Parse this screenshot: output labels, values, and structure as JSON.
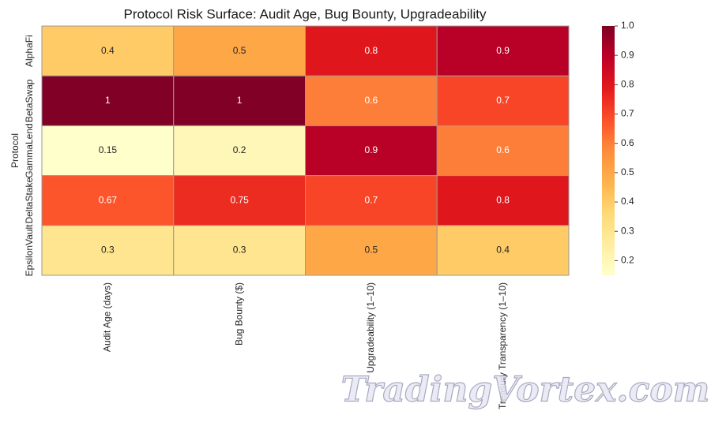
{
  "chart_data": {
    "type": "heatmap",
    "title": "Protocol Risk Surface: Audit Age, Bug Bounty, Upgradeability",
    "ylabel": "Protocol",
    "x_categories": [
      "Audit Age (days)",
      "Bug Bounty ($)",
      "Upgradeability (1–10)",
      "Treasury Transparency (1–10)"
    ],
    "y_categories": [
      "AlphaFi",
      "BetaSwap",
      "GammaLend",
      "DeltaStake",
      "EpsilonVault"
    ],
    "values": [
      [
        0.4,
        0.5,
        0.8,
        0.9
      ],
      [
        1,
        1,
        0.6,
        0.7
      ],
      [
        0.15,
        0.2,
        0.9,
        0.6
      ],
      [
        0.67,
        0.75,
        0.7,
        0.8
      ],
      [
        0.3,
        0.3,
        0.5,
        0.4
      ]
    ],
    "colormap": [
      "#ffffcc",
      "#ffeda0",
      "#fed976",
      "#feb24c",
      "#fd8d3c",
      "#fc4e2a",
      "#e31a1c",
      "#bd0026",
      "#800026"
    ],
    "clim": [
      0.15,
      1
    ],
    "cticks": [
      0.2,
      0.3,
      0.4,
      0.5,
      0.6,
      0.7,
      0.8,
      0.9,
      {
        "value": 1,
        "label": "1.0"
      }
    ],
    "watermark": "TradingVortex.com"
  }
}
